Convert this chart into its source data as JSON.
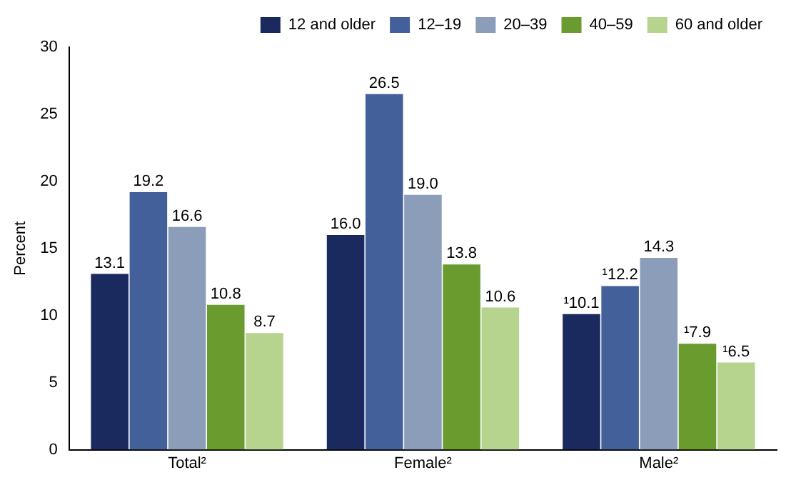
{
  "chart_data": {
    "type": "bar",
    "ylabel": "Percent",
    "categories": [
      "Total²",
      "Female²",
      "Male²"
    ],
    "series": [
      {
        "name": "12 and older",
        "color": "#1b2a5e",
        "values": [
          13.1,
          16.0,
          10.1
        ],
        "value_labels": [
          "13.1",
          "16.0",
          "¹10.1"
        ]
      },
      {
        "name": "12–19",
        "color": "#44609a",
        "values": [
          19.2,
          26.5,
          12.2
        ],
        "value_labels": [
          "19.2",
          "26.5",
          "¹12.2"
        ]
      },
      {
        "name": "20–39",
        "color": "#8c9dba",
        "values": [
          16.6,
          19.0,
          14.3
        ],
        "value_labels": [
          "16.6",
          "19.0",
          "14.3"
        ]
      },
      {
        "name": "40–59",
        "color": "#699b2f",
        "values": [
          10.8,
          13.8,
          7.9
        ],
        "value_labels": [
          "10.8",
          "13.8",
          "¹7.9"
        ]
      },
      {
        "name": "60 and older",
        "color": "#b6d48e",
        "values": [
          8.7,
          10.6,
          6.5
        ],
        "value_labels": [
          "8.7",
          "10.6",
          "¹6.5"
        ]
      }
    ],
    "ylim": [
      0,
      30
    ],
    "yticks": [
      0,
      5,
      10,
      15,
      20,
      25,
      30
    ],
    "grid": false,
    "legend": "top right"
  }
}
